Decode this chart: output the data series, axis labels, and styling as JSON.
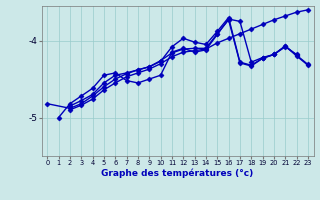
{
  "xlabel": "Graphe des températures (°c)",
  "background_color": "#cce8e8",
  "line_color": "#0000bb",
  "grid_color": "#99cccc",
  "ylim": [
    -5.5,
    -3.55
  ],
  "xlim": [
    -0.5,
    23.5
  ],
  "yticks": [
    -5,
    -4
  ],
  "marker_size": 2.5,
  "linewidth": 1.0,
  "s1": [
    null,
    -5.0,
    -4.82,
    -4.72,
    -4.62,
    -4.45,
    -4.42,
    -4.52,
    -4.55,
    -4.5,
    -4.45,
    -4.15,
    -4.1,
    -4.15,
    -4.12,
    -3.92,
    -3.72,
    -3.75,
    -4.28,
    -4.22,
    -4.18,
    -4.08,
    -4.18,
    null
  ],
  "s2": [
    null,
    null,
    -4.85,
    -4.78,
    -4.7,
    -4.55,
    -4.45,
    -4.42,
    -4.38,
    -4.34,
    -4.27,
    -4.08,
    -3.97,
    -4.02,
    -4.05,
    -3.88,
    -3.7,
    -4.28,
    -4.32,
    -4.23,
    -4.18,
    -4.07,
    -4.2,
    -4.32
  ],
  "s3": [
    -4.82,
    null,
    -4.88,
    -4.82,
    -4.72,
    -4.6,
    -4.5,
    -4.43,
    -4.38,
    -4.34,
    -4.26,
    -4.16,
    -4.11,
    -4.1,
    -4.1,
    -3.91,
    -3.73,
    -4.29,
    -4.33,
    -4.23,
    -4.18,
    -4.07,
    -4.19,
    -4.31
  ],
  "s4": [
    null,
    null,
    -4.9,
    -4.84,
    -4.76,
    -4.64,
    -4.55,
    -4.47,
    -4.42,
    -4.37,
    -4.3,
    -4.21,
    -4.15,
    -4.13,
    -4.11,
    -4.03,
    -3.97,
    -3.91,
    -3.85,
    -3.79,
    -3.73,
    -3.68,
    -3.63,
    -3.6
  ]
}
